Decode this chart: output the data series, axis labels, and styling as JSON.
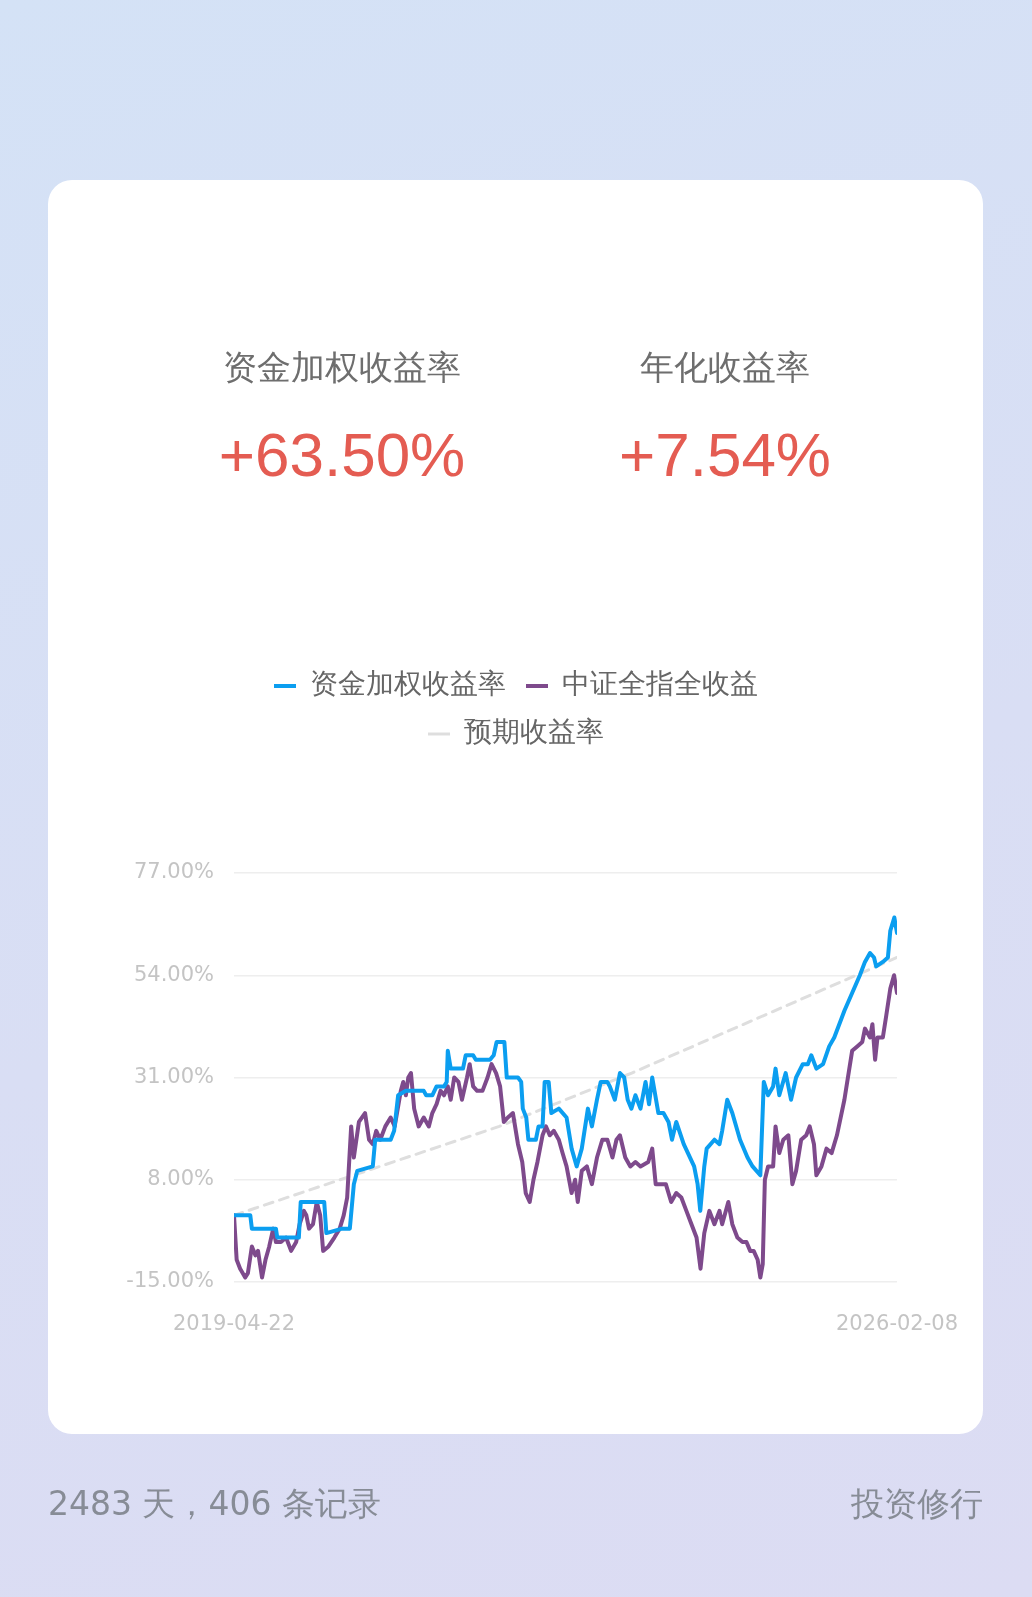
{
  "chart_data": {
    "type": "line",
    "xlim": [
      "2019-04-22",
      "2026-02-08"
    ],
    "xticks": [
      "2019-04-22",
      "2026-02-08"
    ],
    "ylim": [
      -15,
      77
    ],
    "yticks": [
      {
        "value": -15,
        "label": "-15.00%"
      },
      {
        "value": 8,
        "label": "8.00%"
      },
      {
        "value": 31,
        "label": "31.00%"
      },
      {
        "value": 54,
        "label": "54.00%"
      },
      {
        "value": 77,
        "label": "77.00%"
      }
    ],
    "grid": "y",
    "legend": "top",
    "marker": "none",
    "series": [
      {
        "name": "资金加权收益率",
        "color": "#0b9ef0",
        "line_style": "solid",
        "x": [
          "2019-04-22",
          "2019-06-22",
          "2019-06-28",
          "2019-09-26",
          "2019-10-01",
          "2019-12-21",
          "2019-12-28",
          "2020-03-25",
          "2020-04-02",
          "2020-05-31",
          "2020-06-29",
          "2020-07-14",
          "2020-07-27",
          "2020-09-23",
          "2020-10-02",
          "2020-11-29",
          "2020-12-12",
          "2020-12-27",
          "2021-01-25",
          "2021-04-02",
          "2021-04-11",
          "2021-05-04",
          "2021-05-20",
          "2021-06-17",
          "2021-06-27",
          "2021-07-01",
          "2021-07-12",
          "2021-08-27",
          "2021-09-06",
          "2021-10-04",
          "2021-10-14",
          "2021-12-06",
          "2021-12-20",
          "2021-12-31",
          "2022-01-29",
          "2022-02-07",
          "2022-03-21",
          "2022-04-02",
          "2022-04-08",
          "2022-04-21",
          "2022-04-29",
          "2022-05-27",
          "2022-06-06",
          "2022-06-21",
          "2022-06-29",
          "2022-07-14",
          "2022-07-24",
          "2022-08-21",
          "2022-09-19",
          "2022-10-08",
          "2022-10-27",
          "2022-11-15",
          "2022-12-08",
          "2022-12-23",
          "2023-01-11",
          "2023-01-25",
          "2023-02-19",
          "2023-02-28",
          "2023-03-19",
          "2023-04-07",
          "2023-04-23",
          "2023-05-06",
          "2023-05-20",
          "2023-06-04",
          "2023-06-23",
          "2023-07-12",
          "2023-07-25",
          "2023-08-06",
          "2023-08-29",
          "2023-09-17",
          "2023-10-06",
          "2023-10-19",
          "2023-11-04",
          "2023-12-02",
          "2024-01-10",
          "2024-01-23",
          "2024-02-02",
          "2024-02-17",
          "2024-02-26",
          "2024-03-26",
          "2024-04-14",
          "2024-04-24",
          "2024-05-13",
          "2024-06-01",
          "2024-06-30",
          "2024-07-28",
          "2024-08-16",
          "2024-09-14",
          "2024-09-27",
          "2024-10-13",
          "2024-11-01",
          "2024-11-10",
          "2024-11-24",
          "2024-12-18",
          "2025-01-07",
          "2025-01-26",
          "2025-02-20",
          "2025-03-11",
          "2025-03-24",
          "2025-04-12",
          "2025-05-07",
          "2025-05-30",
          "2025-06-18",
          "2025-07-26",
          "2025-08-24",
          "2025-09-22",
          "2025-10-11",
          "2025-10-30",
          "2025-11-14",
          "2025-11-22",
          "2025-12-17",
          "2026-01-05",
          "2026-01-14",
          "2026-01-29",
          "2026-02-08"
        ],
        "values": [
          0,
          0,
          -3,
          -3,
          -5,
          -5,
          3,
          3,
          -4,
          -3,
          -3,
          7,
          10,
          11,
          17,
          17,
          19,
          27,
          28,
          28,
          27,
          27,
          29,
          29,
          30,
          37,
          33,
          33,
          36,
          36,
          35,
          35,
          36,
          39,
          39,
          31,
          31,
          30,
          24,
          22,
          17,
          17,
          20,
          20,
          30,
          30,
          23,
          24,
          22,
          15,
          11,
          15,
          24,
          20,
          26,
          30,
          30,
          29,
          26,
          32,
          31,
          26,
          24,
          27,
          24,
          30,
          25,
          31,
          23,
          23,
          21,
          17,
          21,
          16,
          11,
          7,
          1,
          11,
          15,
          17,
          16,
          19,
          26,
          23,
          17,
          13,
          11,
          9,
          30,
          27,
          29,
          33,
          27,
          32,
          26,
          31,
          34,
          34,
          36,
          33,
          34,
          38,
          40,
          46,
          50,
          54,
          57,
          59,
          58,
          56,
          57,
          58,
          64,
          67,
          63.5
        ]
      },
      {
        "name": "中证全指全收益",
        "color": "#7e4a8c",
        "line_style": "solid",
        "x": [
          "2019-04-22",
          "2019-05-02",
          "2019-05-15",
          "2019-06-03",
          "2019-06-13",
          "2019-06-28",
          "2019-07-11",
          "2019-07-21",
          "2019-08-05",
          "2019-08-18",
          "2019-09-01",
          "2019-09-16",
          "2019-09-26",
          "2019-10-15",
          "2019-11-03",
          "2019-11-22",
          "2019-12-11",
          "2019-12-24",
          "2020-01-09",
          "2020-01-18",
          "2020-01-28",
          "2020-02-12",
          "2020-02-26",
          "2020-03-10",
          "2020-03-21",
          "2020-04-10",
          "2020-05-02",
          "2020-05-22",
          "2020-06-06",
          "2020-06-19",
          "2020-07-04",
          "2020-07-14",
          "2020-08-02",
          "2020-08-25",
          "2020-09-09",
          "2020-09-23",
          "2020-10-06",
          "2020-10-21",
          "2020-11-09",
          "2020-11-29",
          "2020-12-14",
          "2021-01-06",
          "2021-01-15",
          "2021-01-25",
          "2021-02-03",
          "2021-02-13",
          "2021-02-25",
          "2021-03-14",
          "2021-04-02",
          "2021-04-21",
          "2021-05-04",
          "2021-05-20",
          "2021-06-04",
          "2021-06-17",
          "2021-07-01",
          "2021-07-12",
          "2021-07-25",
          "2021-08-10",
          "2021-08-23",
          "2021-09-11",
          "2021-09-21",
          "2021-10-04",
          "2021-10-19",
          "2021-11-08",
          "2021-11-27",
          "2021-12-12",
          "2021-12-29",
          "2022-01-13",
          "2022-01-27",
          "2022-02-11",
          "2022-03-02",
          "2022-03-21",
          "2022-04-06",
          "2022-04-19",
          "2022-05-04",
          "2022-05-18",
          "2022-06-02",
          "2022-06-21",
          "2022-07-04",
          "2022-07-18",
          "2022-08-02",
          "2022-08-21",
          "2022-09-04",
          "2022-09-19",
          "2022-10-08",
          "2022-10-21",
          "2022-10-31",
          "2022-11-15",
          "2022-12-04",
          "2022-12-23",
          "2023-01-11",
          "2023-01-31",
          "2023-02-19",
          "2023-03-10",
          "2023-03-25",
          "2023-04-07",
          "2023-04-27",
          "2023-05-16",
          "2023-06-04",
          "2023-06-23",
          "2023-07-22",
          "2023-08-06",
          "2023-08-19",
          "2023-09-07",
          "2023-09-26",
          "2023-10-16",
          "2023-11-04",
          "2023-11-23",
          "2023-12-12",
          "2023-12-31",
          "2024-01-19",
          "2024-02-03",
          "2024-02-17",
          "2024-03-07",
          "2024-03-26",
          "2024-04-14",
          "2024-04-24",
          "2024-05-17",
          "2024-06-01",
          "2024-06-20",
          "2024-07-09",
          "2024-07-24",
          "2024-08-07",
          "2024-08-20",
          "2024-09-04",
          "2024-09-14",
          "2024-09-23",
          "2024-10-01",
          "2024-10-13",
          "2024-11-01",
          "2024-11-10",
          "2024-11-24",
          "2024-12-09",
          "2024-12-28",
          "2025-01-12",
          "2025-01-26",
          "2025-02-14",
          "2025-03-05",
          "2025-03-18",
          "2025-04-03",
          "2025-04-12",
          "2025-05-01",
          "2025-05-20",
          "2025-06-08",
          "2025-06-28",
          "2025-07-26",
          "2025-08-24",
          "2025-09-12",
          "2025-10-01",
          "2025-10-11",
          "2025-10-30",
          "2025-11-08",
          "2025-11-18",
          "2025-11-27",
          "2025-12-17",
          "2025-12-30",
          "2026-01-14",
          "2026-01-28",
          "2026-02-08"
        ],
        "values": [
          0,
          -10,
          -12,
          -14,
          -13,
          -7,
          -9,
          -8,
          -14,
          -10,
          -7,
          -3,
          -6,
          -6,
          -5,
          -8,
          -6,
          -2,
          1,
          0,
          -3,
          -2,
          3,
          0,
          -8,
          -7,
          -5,
          -3,
          0,
          4,
          20,
          13,
          21,
          23,
          17,
          16,
          19,
          17,
          20,
          22,
          20,
          28,
          30,
          27,
          31,
          32,
          24,
          20,
          22,
          20,
          23,
          25,
          28,
          27,
          29,
          26,
          31,
          30,
          26,
          31,
          34,
          29,
          28,
          28,
          31,
          34,
          32,
          29,
          21,
          22,
          23,
          16,
          12,
          5,
          3,
          8,
          12,
          18,
          20,
          18,
          19,
          17,
          14,
          11,
          5,
          8,
          3,
          10,
          11,
          7,
          13,
          17,
          17,
          13,
          17,
          18,
          13,
          11,
          12,
          11,
          12,
          15,
          7,
          7,
          7,
          3,
          5,
          4,
          1,
          -2,
          -5,
          -12,
          -4,
          1,
          -2,
          1,
          -2,
          3,
          -2,
          -5,
          -6,
          -6,
          -8,
          -8,
          -10,
          -14,
          -11,
          8,
          11,
          11,
          20,
          14,
          17,
          18,
          7,
          10,
          17,
          18,
          20,
          16,
          9,
          11,
          15,
          14,
          18,
          26,
          37,
          38,
          39,
          42,
          40,
          43,
          35,
          40,
          40,
          45,
          51,
          54,
          50
        ]
      },
      {
        "name": "预期收益率",
        "color": "#dedede",
        "line_style": "dashed",
        "x": [
          "2019-04-22",
          "2020-08-31",
          "2022-01-10",
          "2023-05-21",
          "2024-09-29",
          "2026-02-08"
        ],
        "values": [
          0,
          10,
          20,
          32,
          45,
          58
        ]
      }
    ],
    "annotations": [
      "资金加权收益率",
      "+63.50%",
      "年化收益率",
      "+7.54%",
      "2483 天，406 条记录",
      "投资修行"
    ]
  }
}
